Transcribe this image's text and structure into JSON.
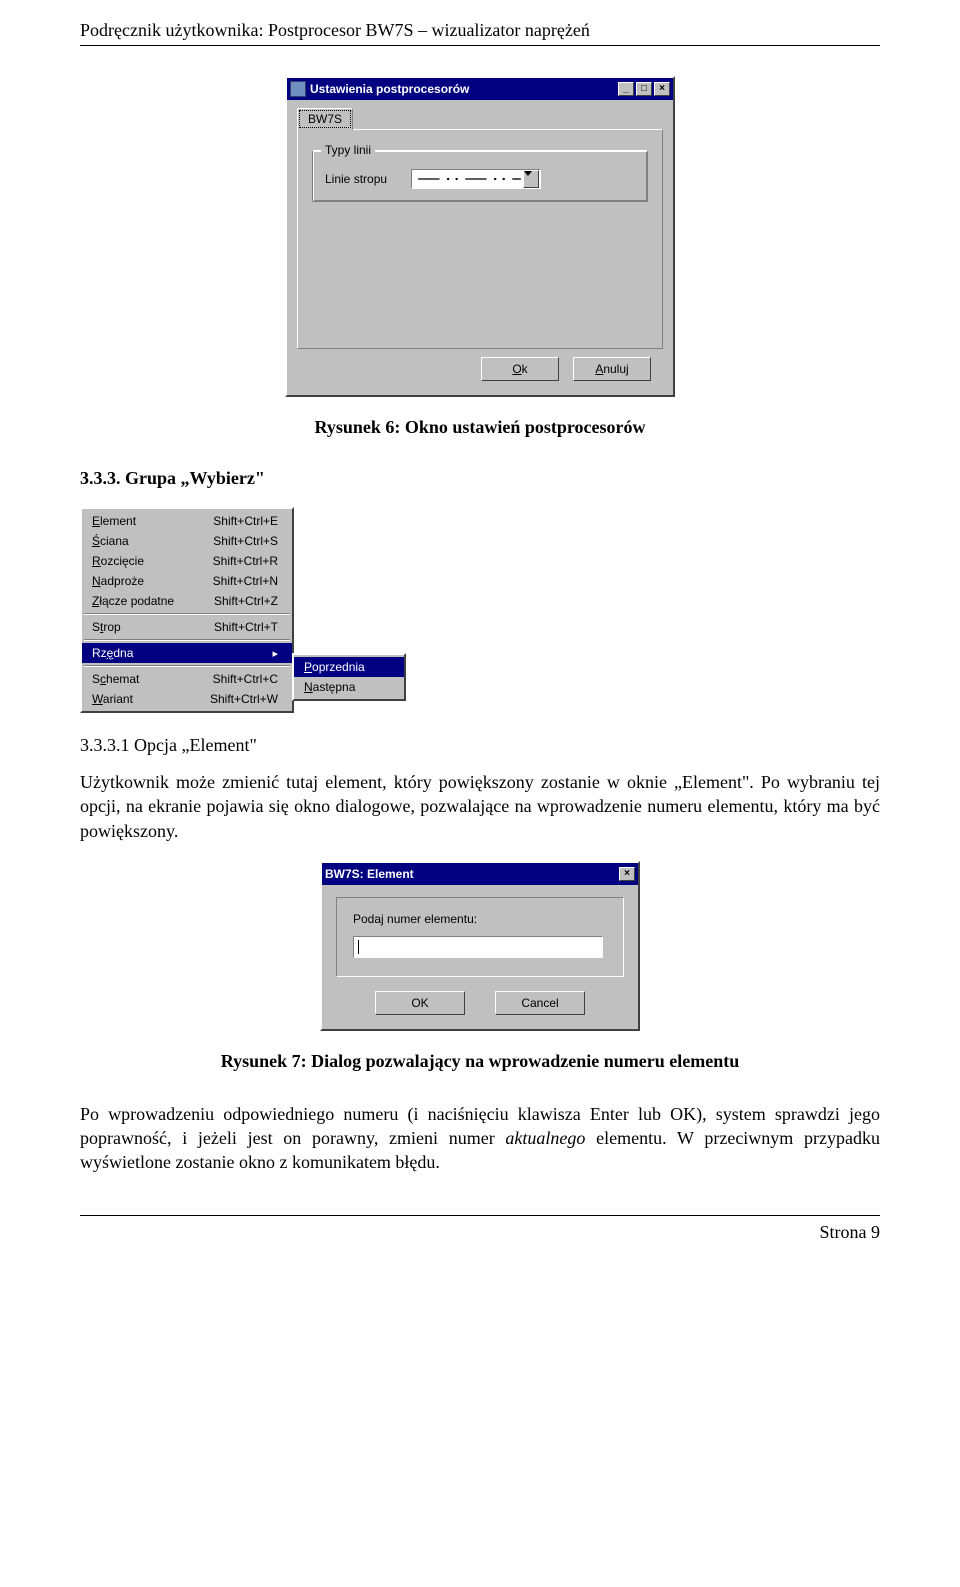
{
  "header": "Podręcznik użytkownika:  Postprocesor BW7S – wizualizator naprężeń",
  "footer": "Strona 9",
  "settings_dialog": {
    "title": "Ustawienia postprocesorów",
    "tab_label": "BW7S",
    "group_label": "Typy linii",
    "field_label": "Linie stropu",
    "ok_label": "Ok",
    "cancel_label": "Anuluj",
    "colors": {
      "titlebar_bg": "#000080",
      "titlebar_text": "#ffffff",
      "face": "#c0c0c0",
      "highlight": "#ffffff",
      "shadow": "#404040",
      "line_pattern": "dash-dot-dot"
    }
  },
  "caption1": "Rysunek 6: Okno ustawień postprocesorów",
  "section_3_3_3": {
    "heading": "3.3.3.   Grupa „Wybierz\"",
    "menu": {
      "items": [
        {
          "label_html": "<span class='u'>E</span>lement",
          "shortcut": "Shift+Ctrl+E"
        },
        {
          "label_html": "<span class='u'>Ś</span>ciana",
          "shortcut": "Shift+Ctrl+S"
        },
        {
          "label_html": "<span class='u'>R</span>ozcięcie",
          "shortcut": "Shift+Ctrl+R"
        },
        {
          "label_html": "<span class='u'>N</span>adproże",
          "shortcut": "Shift+Ctrl+N"
        },
        {
          "label_html": "<span class='u'>Z</span>łącze podatne",
          "shortcut": "Shift+Ctrl+Z"
        }
      ],
      "items2": [
        {
          "label_html": "S<span class='u'>t</span>rop",
          "shortcut": "Shift+Ctrl+T"
        }
      ],
      "items3": [
        {
          "label_html": "Rz<span class='u'>ę</span>dna",
          "shortcut": "",
          "submenu": true,
          "highlight": true
        }
      ],
      "items4": [
        {
          "label_html": "S<span class='u'>c</span>hemat",
          "shortcut": "Shift+Ctrl+C"
        },
        {
          "label_html": "<span class='u'>W</span>ariant",
          "shortcut": "Shift+Ctrl+W"
        }
      ],
      "submenu_items": [
        {
          "label_html": "<span class='u'>P</span>oprzednia",
          "highlight": true
        },
        {
          "label_html": "<span class='u'>N</span>astępna",
          "highlight": false
        }
      ]
    }
  },
  "subsection_3_3_3_1": {
    "heading": "3.3.3.1   Opcja „Element\"",
    "paragraph": "Użytkownik może zmienić tutaj element, który powiększony zostanie w oknie „Element\". Po wybraniu tej opcji, na ekranie pojawia się okno dialogowe, pozwalające na wprowadzenie numeru elementu, który ma być powiększony."
  },
  "element_dialog": {
    "title": "BW7S: Element",
    "prompt": "Podaj numer elementu:",
    "input_value": "",
    "ok_label": "OK",
    "cancel_label": "Cancel"
  },
  "caption2": "Rysunek 7: Dialog pozwalający na wprowadzenie numeru elementu",
  "paragraph2_pre": "Po wprowadzeniu odpowiedniego numeru (i naciśnięciu klawisza Enter lub OK), system sprawdzi jego poprawność, i jeżeli jest on porawny, zmieni numer ",
  "paragraph2_italic": "aktualnego",
  "paragraph2_post": " elementu. W przeciwnym przypadku wyświetlone zostanie okno z komunikatem błędu."
}
